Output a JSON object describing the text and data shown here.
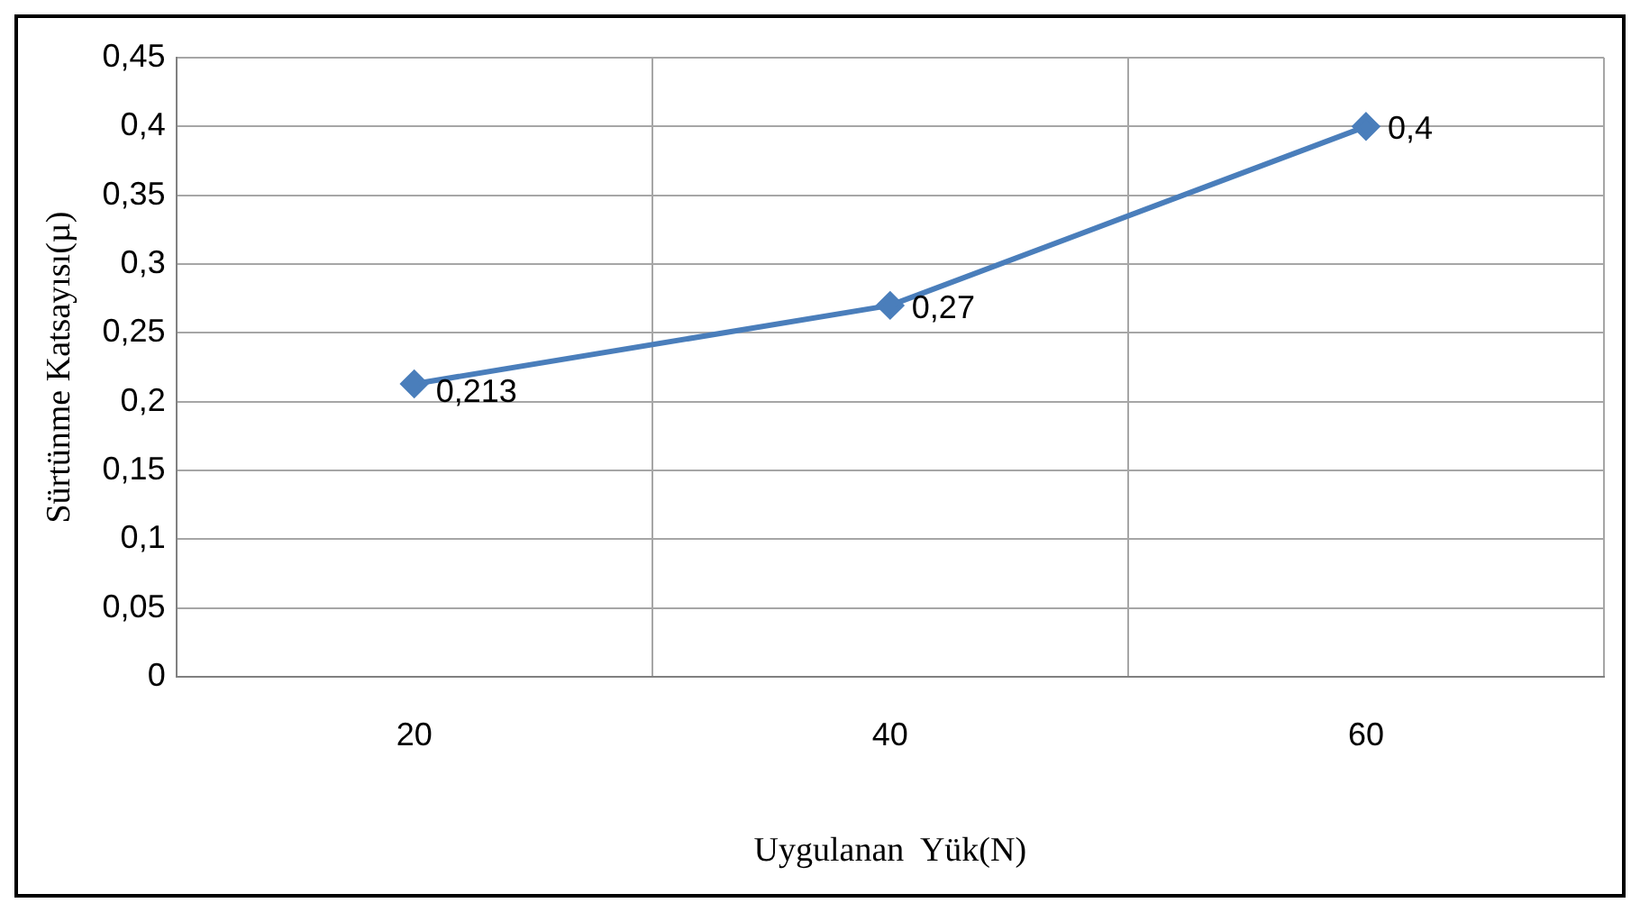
{
  "chart_data": {
    "type": "line",
    "xlabel": "Uygulanan  Yük(N)",
    "ylabel": "Sürtünme Katsayısı(µ)",
    "categories": [
      "20",
      "40",
      "60"
    ],
    "series": [
      {
        "color": "#4a7ebb",
        "values": [
          0.213,
          0.27,
          0.4
        ],
        "value_labels": [
          "0,213",
          "0,27",
          "0,4"
        ]
      }
    ],
    "ylim": [
      0,
      0.45
    ],
    "yticks": [
      0,
      {
        "value": 0.05,
        "label": "0,05"
      },
      {
        "value": 0.1,
        "label": "0,1"
      },
      {
        "value": 0.15,
        "label": "0,15"
      },
      {
        "value": 0.2,
        "label": "0,2"
      },
      {
        "value": 0.25,
        "label": "0,25"
      },
      {
        "value": 0.3,
        "label": "0,3"
      },
      {
        "value": 0.35,
        "label": "0,35"
      },
      {
        "value": 0.4,
        "label": "0,4"
      },
      {
        "value": 0.45,
        "label": "0,45"
      }
    ],
    "grid": true,
    "legend": false,
    "marker": "diamond",
    "line_style": "solid"
  }
}
